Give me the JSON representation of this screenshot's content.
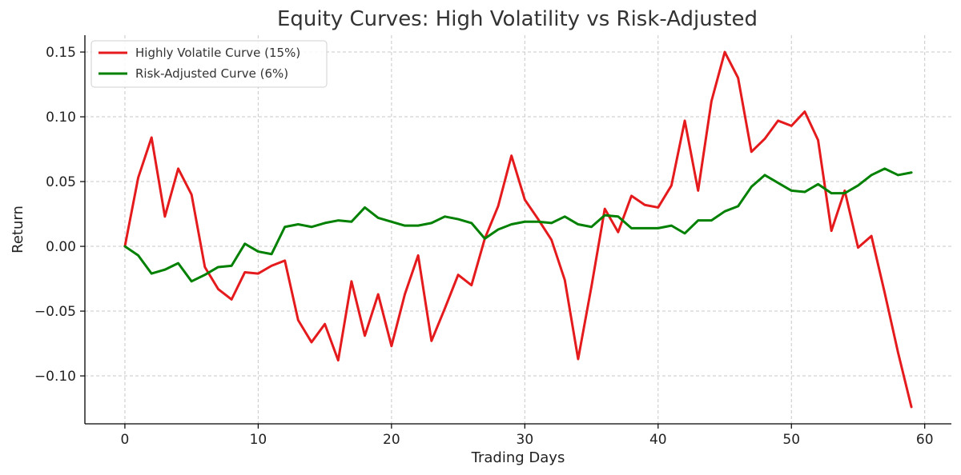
{
  "chart_data": {
    "type": "line",
    "title": "Equity Curves: High Volatility vs Risk-Adjusted",
    "xlabel": "Trading Days",
    "ylabel": "Return",
    "xlim": [
      -3,
      62
    ],
    "ylim": [
      -0.137,
      0.163
    ],
    "x_ticks": [
      0,
      10,
      20,
      30,
      40,
      50,
      60
    ],
    "x_tick_labels": [
      "0",
      "10",
      "20",
      "30",
      "40",
      "50",
      "60"
    ],
    "y_ticks": [
      -0.1,
      -0.05,
      0.0,
      0.05,
      0.1,
      0.15
    ],
    "y_tick_labels": [
      "−0.10",
      "−0.05",
      "0.00",
      "0.05",
      "0.10",
      "0.15"
    ],
    "grid": true,
    "legend_position": "top-left",
    "x": [
      0,
      1,
      2,
      3,
      4,
      5,
      6,
      7,
      8,
      9,
      10,
      11,
      12,
      13,
      14,
      15,
      16,
      17,
      18,
      19,
      20,
      21,
      22,
      23,
      24,
      25,
      26,
      27,
      28,
      29,
      30,
      31,
      32,
      33,
      34,
      35,
      36,
      37,
      38,
      39,
      40,
      41,
      42,
      43,
      44,
      45,
      46,
      47,
      48,
      49,
      50,
      51,
      52,
      53,
      54,
      55,
      56,
      57,
      58,
      59
    ],
    "series": [
      {
        "name": "Highly Volatile Curve (15%)",
        "color": "#e41a1c",
        "values": [
          0.0,
          0.053,
          0.084,
          0.023,
          0.06,
          0.04,
          -0.016,
          -0.033,
          -0.041,
          -0.02,
          -0.021,
          -0.015,
          -0.011,
          -0.057,
          -0.074,
          -0.06,
          -0.088,
          -0.027,
          -0.069,
          -0.037,
          -0.077,
          -0.037,
          -0.007,
          -0.073,
          -0.048,
          -0.022,
          -0.03,
          0.006,
          0.031,
          0.07,
          0.036,
          0.021,
          0.005,
          -0.026,
          -0.087,
          -0.031,
          0.029,
          0.011,
          0.039,
          0.032,
          0.03,
          0.047,
          0.097,
          0.043,
          0.112,
          0.15,
          0.13,
          0.073,
          0.083,
          0.097,
          0.093,
          0.104,
          0.082,
          0.012,
          0.043,
          -0.001,
          0.008,
          -0.036,
          -0.082,
          -0.124
        ]
      },
      {
        "name": "Risk-Adjusted Curve (6%)",
        "color": "#008000",
        "values": [
          0.0,
          -0.007,
          -0.021,
          -0.018,
          -0.013,
          -0.027,
          -0.022,
          -0.016,
          -0.015,
          0.002,
          -0.004,
          -0.006,
          0.015,
          0.017,
          0.015,
          0.018,
          0.02,
          0.019,
          0.03,
          0.022,
          0.019,
          0.016,
          0.016,
          0.018,
          0.023,
          0.021,
          0.018,
          0.006,
          0.013,
          0.017,
          0.019,
          0.019,
          0.018,
          0.023,
          0.017,
          0.015,
          0.024,
          0.023,
          0.014,
          0.014,
          0.014,
          0.016,
          0.01,
          0.02,
          0.02,
          0.027,
          0.031,
          0.046,
          0.055,
          0.049,
          0.043,
          0.042,
          0.048,
          0.041,
          0.041,
          0.047,
          0.055,
          0.06,
          0.055,
          0.057
        ]
      }
    ]
  }
}
